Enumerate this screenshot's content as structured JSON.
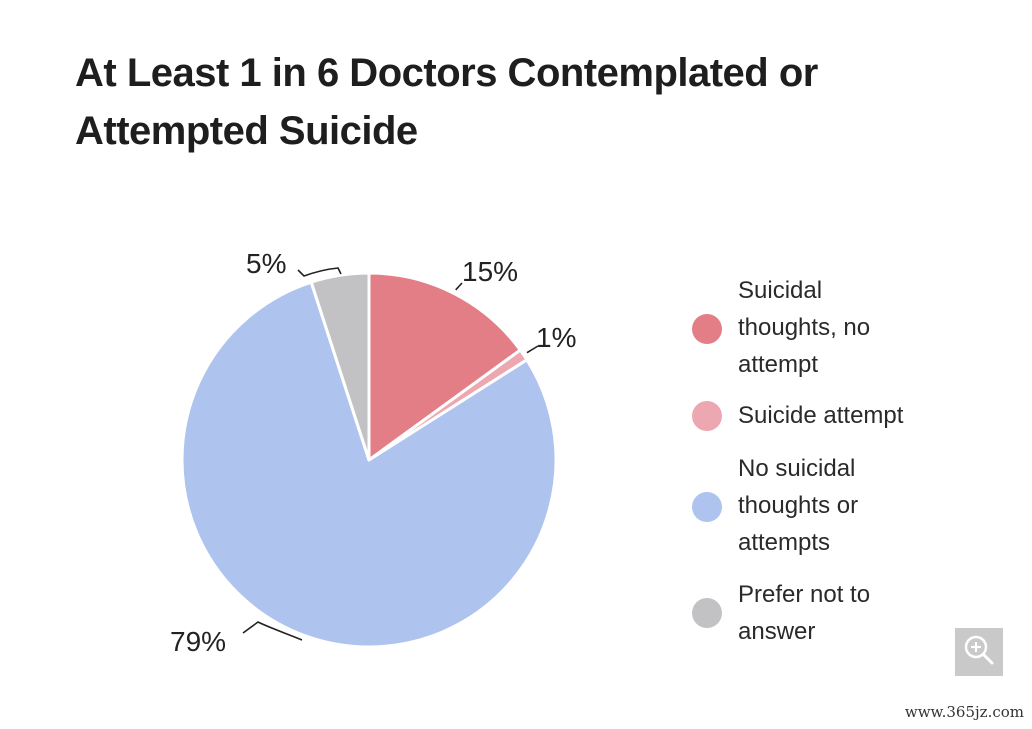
{
  "chart_data": {
    "type": "pie",
    "title": "At Least 1 in 6 Doctors Contemplated or Attempted Suicide",
    "slices": [
      {
        "label": "Suicidal thoughts, no attempt",
        "value": 15,
        "display": "15%",
        "color": "#e37e87"
      },
      {
        "label": "Suicide attempt",
        "value": 1,
        "display": "1%",
        "color": "#eda7b0"
      },
      {
        "label": "No suicidal thoughts or attempts",
        "value": 79,
        "display": "79%",
        "color": "#aec3ee"
      },
      {
        "label": "Prefer not to answer",
        "value": 5,
        "display": "5%",
        "color": "#c2c2c4"
      }
    ],
    "legend_position": "right"
  },
  "legend_lines": [
    [
      "Suicidal",
      "thoughts, no",
      "attempt"
    ],
    [
      "Suicide attempt"
    ],
    [
      "No suicidal",
      "thoughts or",
      "attempts"
    ],
    [
      "Prefer not to",
      "answer"
    ]
  ],
  "zoom_icon": "zoom-in-icon",
  "watermark": "www.365jz.com"
}
